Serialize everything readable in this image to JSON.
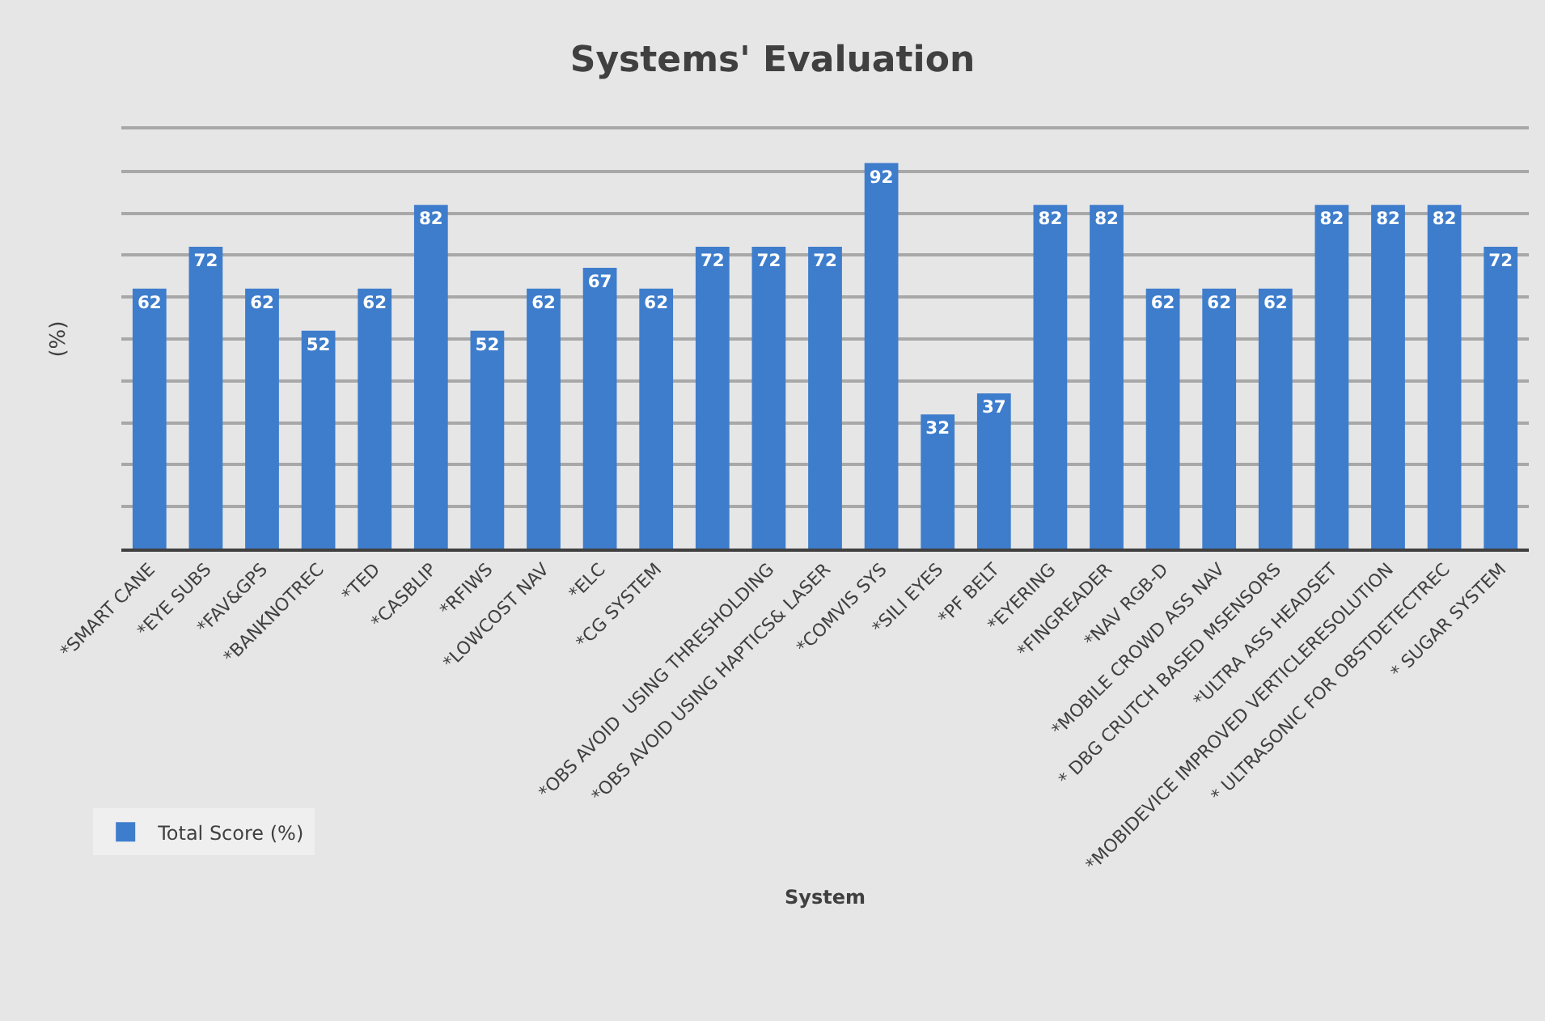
{
  "chart_data": {
    "type": "bar",
    "title": "Systems' Evaluation",
    "xlabel": "System",
    "ylabel": "(%)",
    "categories": [
      "*SMART CANE",
      "*EYE SUBS",
      "*FAV&GPS",
      "*BANKNOTREC",
      "*TED",
      "*CASBLIP",
      "*RFIWS",
      "*LOWCOST NAV",
      "*ELC",
      "*CG SYSTEM",
      null,
      "*OBS AVOID  USING THRESHOLDING",
      "*OBS AVOID USING HAPTICS& LASER",
      "*COMVIS SYS",
      "*SILI EYES",
      "*PF BELT",
      "*EYERING",
      "*FINGREADER",
      "*NAV RGB-D",
      "*MOBILE CROWD ASS NAV",
      "* DBG CRUTCH BASED MSENSORS",
      "*ULTRA ASS HEADSET",
      "*MOBIDEVICE IMPROVED VERTICLERESOLUTION",
      "* ULTRASONIC FOR OBSTDETECTREC",
      "* SUGAR SYSTEM"
    ],
    "series": [
      {
        "name": "Total Score (%)",
        "color": "#3e7dcc",
        "values": [
          62,
          72,
          62,
          52,
          62,
          82,
          52,
          62,
          67,
          62,
          72,
          72,
          72,
          92,
          32,
          37,
          82,
          82,
          62,
          62,
          62,
          82,
          82,
          82,
          72
        ]
      }
    ],
    "ylim": [
      0,
      100
    ],
    "yticks": [
      {
        "value": 0,
        "label": null
      },
      {
        "value": 10,
        "label": null
      },
      {
        "value": 20,
        "label": null
      },
      {
        "value": 30,
        "label": null
      },
      {
        "value": 40,
        "label": null
      },
      {
        "value": 50,
        "label": null
      },
      {
        "value": 60,
        "label": null
      },
      {
        "value": 70,
        "label": null
      },
      {
        "value": 80,
        "label": null
      },
      {
        "value": 90,
        "label": null
      },
      {
        "value": 100,
        "label": null
      }
    ],
    "tick_labels": "x",
    "grid": "y",
    "legend": "bottom left",
    "data_labels": true
  }
}
